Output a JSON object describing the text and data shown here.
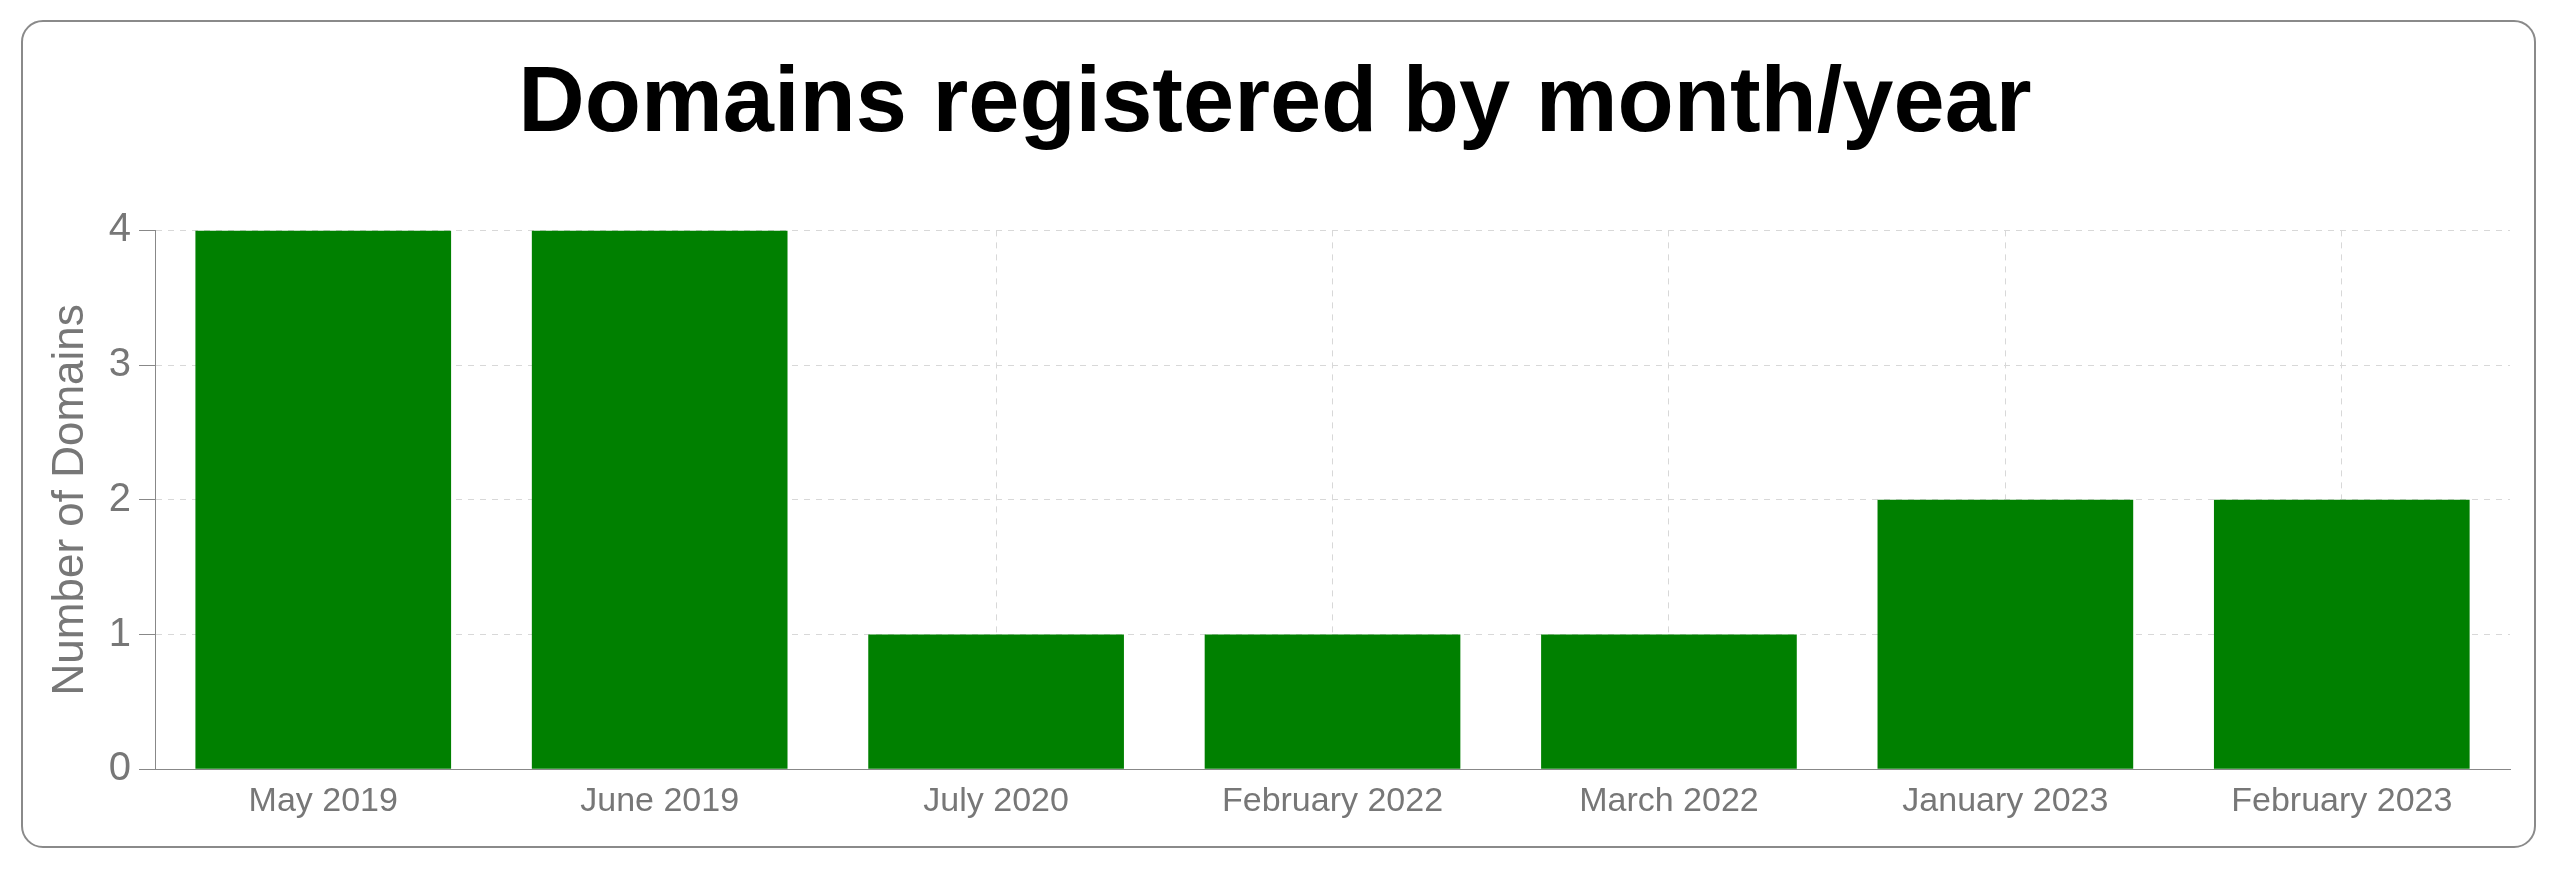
{
  "chart_data": {
    "type": "bar",
    "title": "Domains registered by month/year",
    "ylabel": "Number of Domains",
    "categories": [
      "May 2019",
      "June 2019",
      "July 2020",
      "February 2022",
      "March 2022",
      "January 2023",
      "February 2023"
    ],
    "values": [
      4,
      4,
      1,
      1,
      1,
      2,
      2
    ],
    "color": "#008000",
    "ylim": [
      0,
      4
    ],
    "yticks": [
      0,
      1,
      2,
      3,
      4
    ],
    "grid": true
  }
}
